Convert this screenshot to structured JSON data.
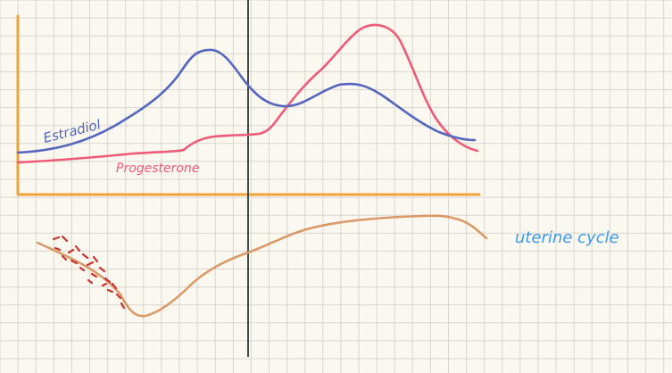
{
  "colors": {
    "background": "#fbf8f0",
    "grid": "#d9d6cf",
    "axis": "#f2a33a",
    "estradiol": "#5566bf",
    "progesterone": "#ee5a78",
    "uterine": "#d99a68",
    "menses": "#c8322c",
    "divider": "#3f4a4b",
    "uterine_label": "#3b9be8"
  },
  "labels": {
    "estradiol": "Estradiol",
    "progesterone": "Progesterone",
    "uterine": "uterine  cycle"
  }
}
